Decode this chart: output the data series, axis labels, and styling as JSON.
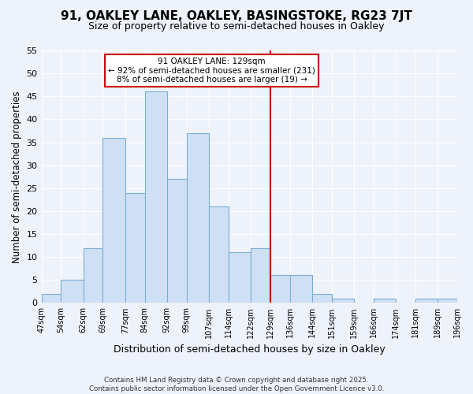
{
  "title": "91, OAKLEY LANE, OAKLEY, BASINGSTOKE, RG23 7JT",
  "subtitle": "Size of property relative to semi-detached houses in Oakley",
  "xlabel": "Distribution of semi-detached houses by size in Oakley",
  "ylabel": "Number of semi-detached properties",
  "bin_edges": [
    47,
    54,
    62,
    69,
    77,
    84,
    92,
    99,
    107,
    114,
    122,
    129,
    136,
    144,
    151,
    159,
    166,
    174,
    181,
    189,
    196
  ],
  "bin_labels": [
    "47sqm",
    "54sqm",
    "62sqm",
    "69sqm",
    "77sqm",
    "84sqm",
    "92sqm",
    "99sqm",
    "107sqm",
    "114sqm",
    "122sqm",
    "129sqm",
    "136sqm",
    "144sqm",
    "151sqm",
    "159sqm",
    "166sqm",
    "174sqm",
    "181sqm",
    "189sqm",
    "196sqm"
  ],
  "counts": [
    2,
    5,
    12,
    36,
    24,
    46,
    27,
    37,
    21,
    11,
    12,
    6,
    6,
    2,
    1,
    0,
    1,
    0,
    1,
    1
  ],
  "bar_color": "#cfe0f5",
  "bar_edge_color": "#7aafd4",
  "property_line_x": 129,
  "property_line_color": "#cc0000",
  "annotation_title": "91 OAKLEY LANE: 129sqm",
  "annotation_line1": "← 92% of semi-detached houses are smaller (231)",
  "annotation_line2": "8% of semi-detached houses are larger (19) →",
  "annotation_box_color": "white",
  "annotation_box_edge_color": "#cc0000",
  "ylim": [
    0,
    55
  ],
  "yticks": [
    0,
    5,
    10,
    15,
    20,
    25,
    30,
    35,
    40,
    45,
    50,
    55
  ],
  "footer_line1": "Contains HM Land Registry data © Crown copyright and database right 2025.",
  "footer_line2": "Contains public sector information licensed under the Open Government Licence v3.0.",
  "background_color": "#eef2fb"
}
